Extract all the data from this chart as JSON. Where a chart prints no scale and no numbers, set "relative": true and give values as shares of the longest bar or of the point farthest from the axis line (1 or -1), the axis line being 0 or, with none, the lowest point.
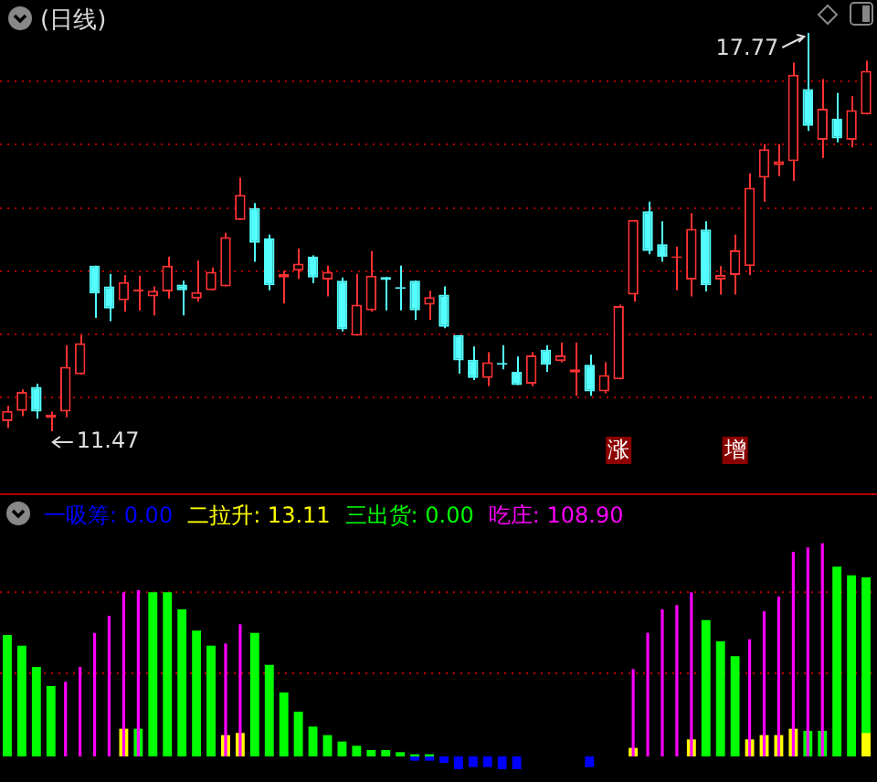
{
  "chart_data": [
    {
      "type": "candlestick",
      "title": "(日线)",
      "categories": [
        null,
        null,
        null,
        null,
        null,
        null,
        null,
        null,
        null,
        null,
        null,
        null,
        null,
        null,
        null,
        null,
        null,
        null,
        null,
        null,
        null,
        null,
        null,
        null,
        null,
        null,
        null,
        null,
        null,
        null,
        null,
        null,
        null,
        null,
        null,
        null,
        null,
        null,
        null,
        null,
        null,
        null,
        "涨",
        null,
        null,
        null,
        null,
        null,
        null,
        null,
        "增",
        null,
        null,
        null,
        null,
        null,
        null,
        null,
        null,
        null
      ],
      "ohlc": [
        [
          11.63,
          11.87,
          11.52,
          11.79
        ],
        [
          11.79,
          12.13,
          11.71,
          12.09
        ],
        [
          12.17,
          12.22,
          11.67,
          11.78
        ],
        [
          11.68,
          11.78,
          11.47,
          11.73
        ],
        [
          11.78,
          12.83,
          11.69,
          12.49
        ],
        [
          12.37,
          12.99,
          12.37,
          12.86
        ],
        [
          14.09,
          14.09,
          13.26,
          13.65
        ],
        [
          13.76,
          13.96,
          13.21,
          13.41
        ],
        [
          13.54,
          13.94,
          13.36,
          13.83
        ],
        [
          13.68,
          13.93,
          13.38,
          13.69
        ],
        [
          13.6,
          13.76,
          13.3,
          13.69
        ],
        [
          13.68,
          14.23,
          13.57,
          14.09
        ],
        [
          13.79,
          13.85,
          13.3,
          13.7
        ],
        [
          13.57,
          14.17,
          13.52,
          13.67
        ],
        [
          13.7,
          14.06,
          13.7,
          13.99
        ],
        [
          13.76,
          14.61,
          13.76,
          14.54
        ],
        [
          14.81,
          15.48,
          14.81,
          15.21
        ],
        [
          15.0,
          15.08,
          14.15,
          14.45
        ],
        [
          14.52,
          14.58,
          13.7,
          13.78
        ],
        [
          13.9,
          14.01,
          13.49,
          13.96
        ],
        [
          14.01,
          14.36,
          13.88,
          14.12
        ],
        [
          14.23,
          14.25,
          13.81,
          13.9
        ],
        [
          13.87,
          14.09,
          13.6,
          13.99
        ],
        [
          13.85,
          13.9,
          13.05,
          13.08
        ],
        [
          12.98,
          13.96,
          12.98,
          13.47
        ],
        [
          13.38,
          14.32,
          13.36,
          13.93
        ],
        [
          13.91,
          13.91,
          13.38,
          13.86
        ],
        [
          13.74,
          14.09,
          13.38,
          13.72
        ],
        [
          13.85,
          13.85,
          13.23,
          13.38
        ],
        [
          13.47,
          13.69,
          13.23,
          13.59
        ],
        [
          13.63,
          13.76,
          13.1,
          13.12
        ],
        [
          12.99,
          12.99,
          12.38,
          12.59
        ],
        [
          12.6,
          12.81,
          12.28,
          12.31
        ],
        [
          12.31,
          12.72,
          12.18,
          12.56
        ],
        [
          12.53,
          12.83,
          12.45,
          12.52
        ],
        [
          12.41,
          12.65,
          12.2,
          12.2
        ],
        [
          12.22,
          12.72,
          12.18,
          12.67
        ],
        [
          12.76,
          12.83,
          12.41,
          12.52
        ],
        [
          12.58,
          12.87,
          12.56,
          12.67
        ],
        [
          12.4,
          12.87,
          12.03,
          12.45
        ],
        [
          12.52,
          12.68,
          12.03,
          12.1
        ],
        [
          12.1,
          12.56,
          12.07,
          12.36
        ],
        [
          12.29,
          13.47,
          12.29,
          13.45
        ],
        [
          13.63,
          14.81,
          13.52,
          14.81
        ],
        [
          14.95,
          15.1,
          14.27,
          14.32
        ],
        [
          14.43,
          14.79,
          14.15,
          14.23
        ],
        [
          14.21,
          14.39,
          13.7,
          14.23
        ],
        [
          13.87,
          14.92,
          13.6,
          14.67
        ],
        [
          14.66,
          14.79,
          13.68,
          13.78
        ],
        [
          13.87,
          14.08,
          13.63,
          13.94
        ],
        [
          13.94,
          14.58,
          13.63,
          14.33
        ],
        [
          14.08,
          15.55,
          13.94,
          15.32
        ],
        [
          15.48,
          16.01,
          15.1,
          15.93
        ],
        [
          15.68,
          16.01,
          15.5,
          15.74
        ],
        [
          15.74,
          17.3,
          15.43,
          17.11
        ],
        [
          16.88,
          17.77,
          16.22,
          16.3
        ],
        [
          16.08,
          17.04,
          15.79,
          16.57
        ],
        [
          16.41,
          16.82,
          16.04,
          16.1
        ],
        [
          16.08,
          16.77,
          15.96,
          16.55
        ],
        [
          16.48,
          17.33,
          16.48,
          17.17
        ]
      ],
      "colors": [
        "#ff3232",
        "#ff3232",
        "#54ffff",
        "#ff3232",
        "#ff3232",
        "#ff3232",
        "#54ffff",
        "#54ffff",
        "#ff3232",
        "#ff3232",
        "#ff3232",
        "#ff3232",
        "#54ffff",
        "#ff3232",
        "#ff3232",
        "#ff3232",
        "#ff3232",
        "#54ffff",
        "#54ffff",
        "#ff3232",
        "#ff3232",
        "#54ffff",
        "#ff3232",
        "#54ffff",
        "#ff3232",
        "#ff3232",
        "#54ffff",
        "#54ffff",
        "#54ffff",
        "#ff3232",
        "#54ffff",
        "#54ffff",
        "#54ffff",
        "#ff3232",
        "#54ffff",
        "#54ffff",
        "#ff3232",
        "#54ffff",
        "#ff3232",
        "#ff3232",
        "#54ffff",
        "#ff3232",
        "#ff3232",
        "#ff3232",
        "#54ffff",
        "#54ffff",
        "#ff3232",
        "#ff3232",
        "#54ffff",
        "#ff3232",
        "#ff3232",
        "#ff3232",
        "#ff3232",
        "#ff3232",
        "#ff3232",
        "#54ffff",
        "#ff3232",
        "#54ffff",
        "#ff3232",
        "#ff3232"
      ],
      "yticks": [
        {
          "value": 12,
          "label": null
        },
        {
          "value": 13,
          "label": null
        },
        {
          "value": 14,
          "label": null
        },
        {
          "value": 15,
          "label": null
        },
        {
          "value": 16,
          "label": null
        },
        {
          "value": 17,
          "label": null
        }
      ],
      "grid": "y",
      "tick_labels": "x",
      "annotations": [
        "17.77",
        "11.47"
      ]
    },
    {
      "type": "bar",
      "relative": true,
      "legend": "top left",
      "tick_labels": false,
      "categories": [
        null,
        null,
        null,
        null,
        null,
        null,
        null,
        null,
        null,
        null,
        null,
        null,
        null,
        null,
        null,
        null,
        null,
        null,
        null,
        null,
        null,
        null,
        null,
        null,
        null,
        null,
        null,
        null,
        null,
        null,
        null,
        null,
        null,
        null,
        null,
        null,
        null,
        null,
        null,
        null,
        null,
        null,
        null,
        null,
        null,
        null,
        null,
        null,
        null,
        null,
        null,
        null,
        null,
        null,
        null,
        null,
        null,
        null,
        null,
        null
      ],
      "series": [
        {
          "name": "一吸筹: 0.00",
          "color": "#0000ff",
          "values": [
            null,
            null,
            null,
            null,
            null,
            null,
            null,
            null,
            null,
            null,
            null,
            null,
            null,
            null,
            null,
            null,
            null,
            null,
            null,
            null,
            null,
            null,
            null,
            null,
            null,
            null,
            null,
            null,
            -0.02,
            -0.02,
            -0.03,
            -0.06,
            -0.05,
            -0.05,
            -0.06,
            -0.06,
            null,
            null,
            null,
            null,
            -0.05,
            null,
            null,
            null,
            null,
            null,
            null,
            null,
            null,
            null,
            null,
            null,
            null,
            null,
            null,
            null,
            null,
            null,
            null,
            null
          ]
        },
        {
          "name": "二拉升: 13.11",
          "color": "#ffff00",
          "values": [
            null,
            null,
            null,
            null,
            null,
            null,
            null,
            null,
            0.13,
            null,
            null,
            null,
            null,
            null,
            null,
            0.1,
            0.11,
            null,
            null,
            null,
            null,
            null,
            null,
            null,
            null,
            null,
            null,
            null,
            null,
            null,
            null,
            null,
            null,
            null,
            null,
            null,
            null,
            null,
            null,
            null,
            null,
            null,
            null,
            0.04,
            null,
            null,
            null,
            0.08,
            null,
            null,
            null,
            0.08,
            0.1,
            0.1,
            0.13,
            null,
            null,
            null,
            null,
            0.11
          ]
        },
        {
          "name": "三出货: 0.00",
          "color": "#00ff00",
          "values": [
            0.57,
            0.52,
            0.42,
            0.33,
            null,
            null,
            null,
            null,
            null,
            0.13,
            0.77,
            0.77,
            0.69,
            0.59,
            0.52,
            null,
            null,
            0.58,
            0.43,
            0.3,
            0.21,
            0.14,
            0.1,
            0.07,
            0.05,
            0.03,
            0.03,
            0.02,
            0.01,
            0.01,
            null,
            null,
            null,
            null,
            null,
            null,
            null,
            null,
            null,
            null,
            null,
            null,
            null,
            null,
            null,
            null,
            null,
            null,
            0.64,
            0.54,
            0.47,
            null,
            null,
            null,
            null,
            0.12,
            0.12,
            0.89,
            0.85,
            0.84
          ]
        },
        {
          "name": "吃庄: 108.90",
          "color": "#ff00ff",
          "values": [
            null,
            null,
            null,
            null,
            0.35,
            0.42,
            0.58,
            0.66,
            0.77,
            0.78,
            null,
            null,
            null,
            null,
            null,
            0.53,
            0.62,
            null,
            null,
            null,
            null,
            null,
            null,
            null,
            null,
            null,
            null,
            null,
            null,
            null,
            null,
            null,
            null,
            null,
            null,
            null,
            null,
            null,
            null,
            null,
            null,
            null,
            null,
            0.41,
            0.58,
            0.69,
            0.71,
            0.77,
            null,
            null,
            null,
            0.55,
            0.68,
            0.75,
            0.96,
            0.98,
            1,
            null,
            null,
            null
          ]
        }
      ],
      "ref_lines": [
        {
          "axis": "y",
          "value": 0.39,
          "color": "#c00000",
          "line_style": "dotted"
        },
        {
          "axis": "y",
          "value": 0.77,
          "color": "#c00000",
          "line_style": "dotted"
        }
      ]
    }
  ]
}
